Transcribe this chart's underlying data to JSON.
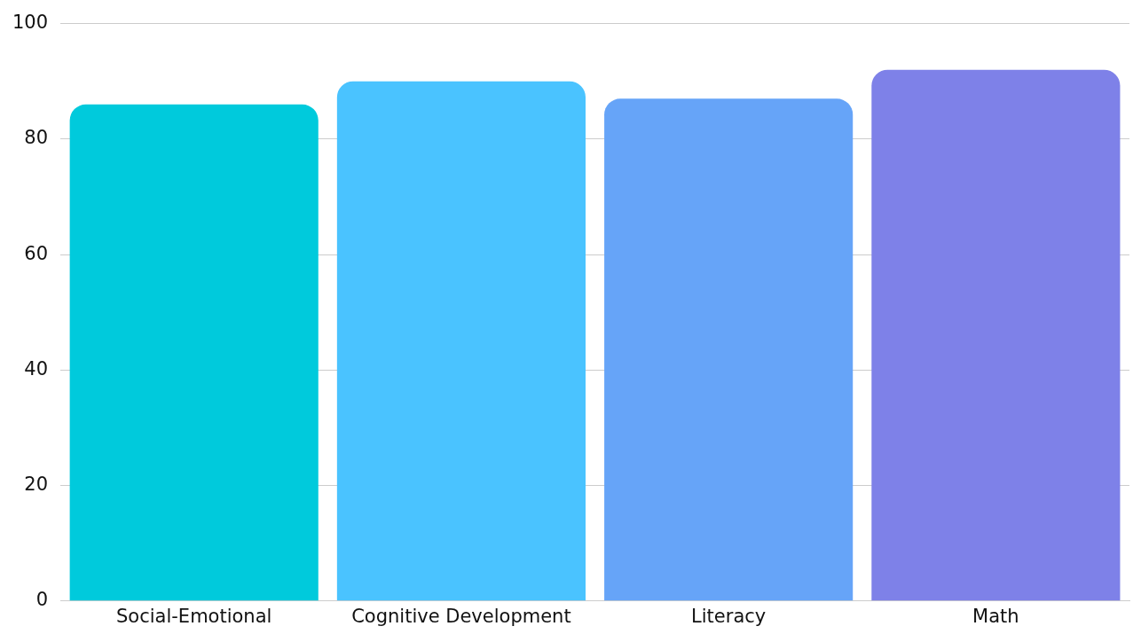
{
  "chart_data": {
    "type": "bar",
    "categories": [
      "Social-Emotional",
      "Cognitive Development",
      "Literacy",
      "Math"
    ],
    "values": [
      86,
      90,
      87,
      92
    ],
    "colors": [
      "#00cadc",
      "#4ac3ff",
      "#66a4f8",
      "#7e81e8"
    ],
    "ylim": [
      0,
      100
    ],
    "yticks": [
      0,
      20,
      40,
      60,
      80,
      100
    ],
    "grid": "y",
    "legend": false
  }
}
